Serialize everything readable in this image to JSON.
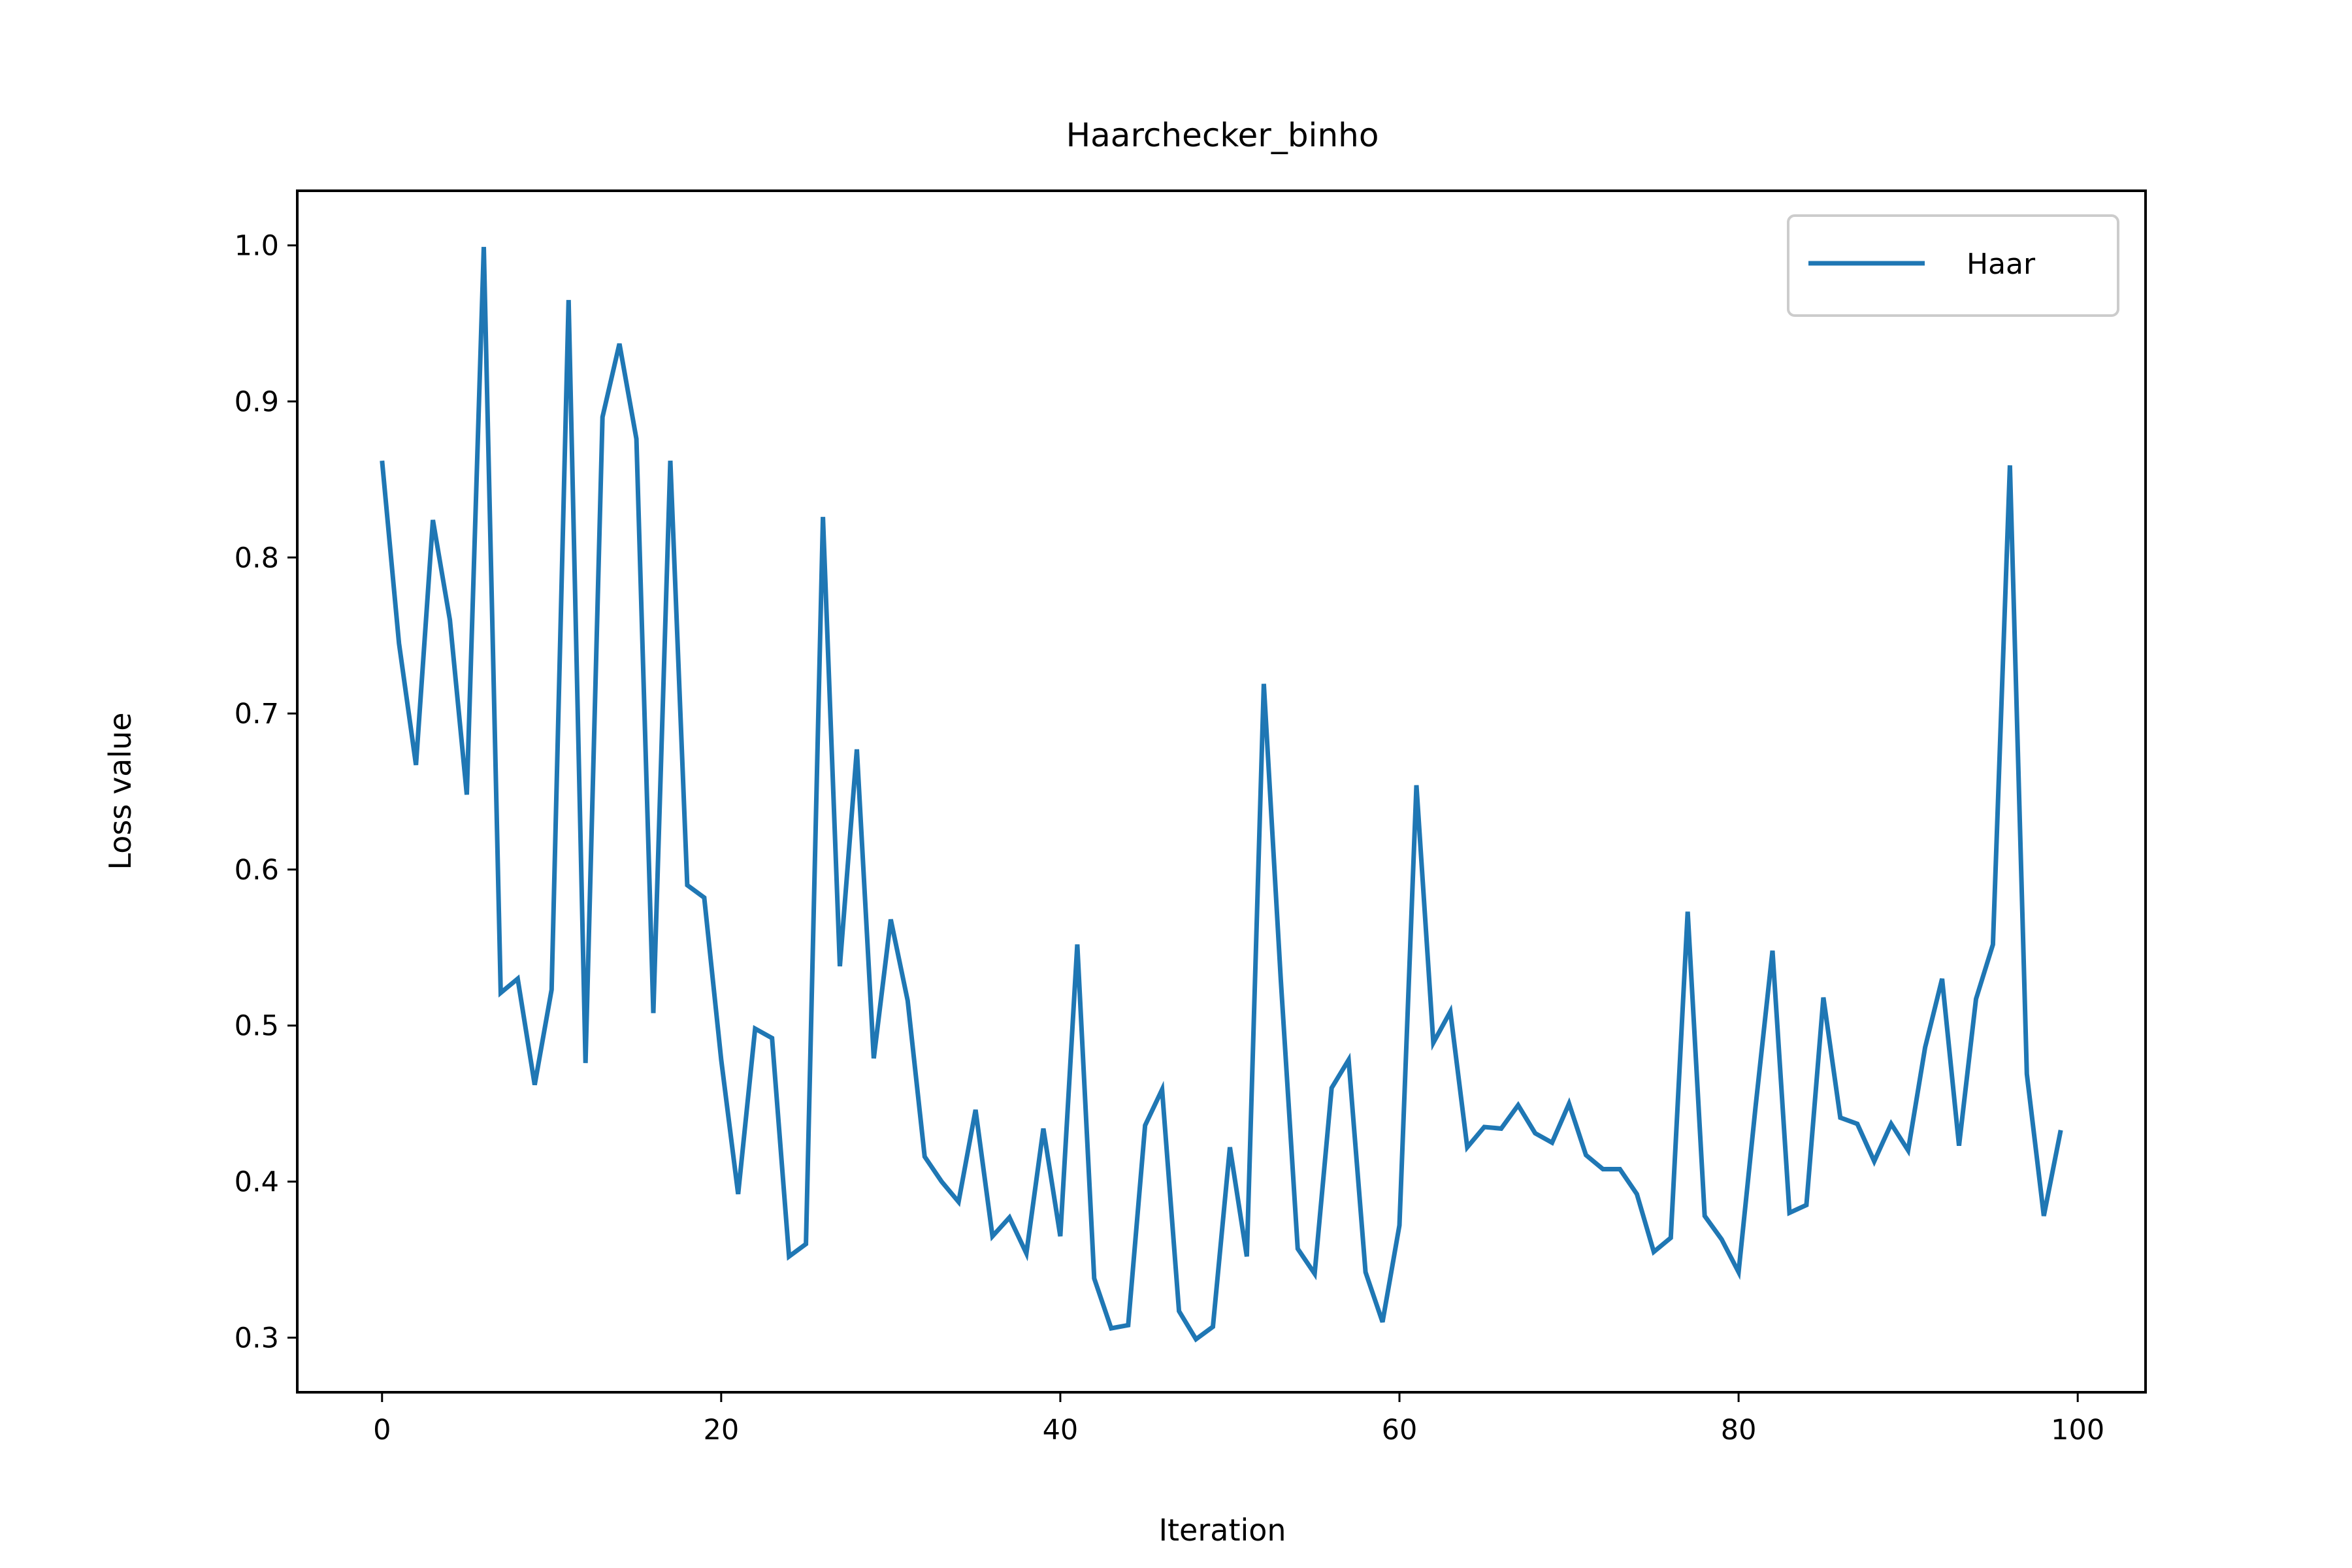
{
  "chart_data": {
    "type": "line",
    "title": "Haarchecker_binho",
    "xlabel": "Iteration",
    "ylabel": "Loss value",
    "xlim": [
      -5,
      104
    ],
    "ylim": [
      0.265,
      1.035
    ],
    "xticks": [
      0,
      20,
      40,
      60,
      80,
      100
    ],
    "yticks": [
      0.3,
      0.4,
      0.5,
      0.6,
      0.7,
      0.8,
      0.9,
      1.0
    ],
    "xtick_labels": [
      "0",
      "20",
      "40",
      "60",
      "80",
      "100"
    ],
    "ytick_labels": [
      "0.3",
      "0.4",
      "0.5",
      "0.6",
      "0.7",
      "0.8",
      "0.9",
      "1.0"
    ],
    "grid": false,
    "legend_position": "top-right",
    "series": [
      {
        "name": "Haar",
        "color": "#1f77b4",
        "x": [
          0,
          1,
          2,
          3,
          4,
          5,
          6,
          7,
          8,
          9,
          10,
          11,
          12,
          13,
          14,
          15,
          16,
          17,
          18,
          19,
          20,
          21,
          22,
          23,
          24,
          25,
          26,
          27,
          28,
          29,
          30,
          31,
          32,
          33,
          34,
          35,
          36,
          37,
          38,
          39,
          40,
          41,
          42,
          43,
          44,
          45,
          46,
          47,
          48,
          49,
          50,
          51,
          52,
          53,
          54,
          55,
          56,
          57,
          58,
          59,
          60,
          61,
          62,
          63,
          64,
          65,
          66,
          67,
          68,
          69,
          70,
          71,
          72,
          73,
          74,
          75,
          76,
          77,
          78,
          79,
          80,
          81,
          82,
          83,
          84,
          85,
          86,
          87,
          88,
          89,
          90,
          91,
          92,
          93,
          94,
          95,
          96,
          97,
          98,
          99
        ],
        "y": [
          0.862,
          0.745,
          0.667,
          0.824,
          0.76,
          0.648,
          0.999,
          0.521,
          0.53,
          0.462,
          0.523,
          0.965,
          0.476,
          0.89,
          0.937,
          0.876,
          0.508,
          0.862,
          0.59,
          0.582,
          0.478,
          0.392,
          0.498,
          0.492,
          0.352,
          0.36,
          0.826,
          0.538,
          0.677,
          0.479,
          0.568,
          0.516,
          0.416,
          0.4,
          0.387,
          0.446,
          0.365,
          0.377,
          0.354,
          0.434,
          0.365,
          0.552,
          0.338,
          0.306,
          0.308,
          0.436,
          0.459,
          0.317,
          0.299,
          0.307,
          0.422,
          0.352,
          0.719,
          0.53,
          0.357,
          0.341,
          0.46,
          0.478,
          0.342,
          0.31,
          0.372,
          0.654,
          0.489,
          0.509,
          0.422,
          0.435,
          0.434,
          0.449,
          0.431,
          0.425,
          0.45,
          0.417,
          0.408,
          0.408,
          0.392,
          0.355,
          0.364,
          0.573,
          0.378,
          0.363,
          0.342,
          0.448,
          0.548,
          0.38,
          0.385,
          0.518,
          0.441,
          0.437,
          0.413,
          0.437,
          0.42,
          0.486,
          0.53,
          0.423,
          0.517,
          0.552,
          0.859,
          0.469,
          0.378,
          0.433
        ]
      }
    ]
  }
}
